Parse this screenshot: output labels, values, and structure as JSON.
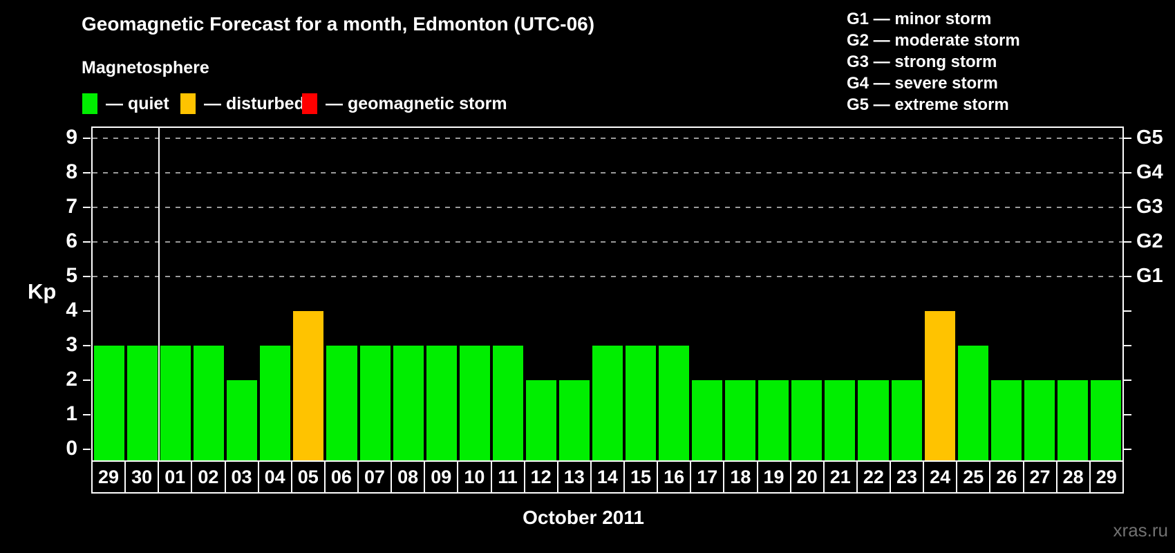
{
  "title": "Geomagnetic Forecast for a month, Edmonton (UTC-06)",
  "subtitle": "Magnetosphere",
  "legend": {
    "items": [
      {
        "key": "quiet",
        "label": "— quiet",
        "color": "#00EE00"
      },
      {
        "key": "disturbed",
        "label": "— disturbed",
        "color": "#FFC300"
      },
      {
        "key": "storm",
        "label": "— geomagnetic storm",
        "color": "#FF0000"
      }
    ]
  },
  "storm_scale_legend": [
    "G1 — minor storm",
    "G2 — moderate storm",
    "G3 — strong storm",
    "G4 — severe storm",
    "G5 — extreme storm"
  ],
  "watermark": "xras.ru",
  "colors": {
    "background": "#000000",
    "axis": "#FFFFFF",
    "gridline": "#9B9B9B",
    "watermark_text": "#717171"
  },
  "chart_data": {
    "type": "bar",
    "title": "Geomagnetic Forecast for a month, Edmonton (UTC-06)",
    "xlabel": "October 2011",
    "ylabel": "Kp",
    "ylim": [
      0,
      9
    ],
    "ytick_step": 1,
    "grid": "dashed horizontal at Kp 5-9 only",
    "legend_position": "top",
    "categories": [
      "29",
      "30",
      "01",
      "02",
      "03",
      "04",
      "05",
      "06",
      "07",
      "08",
      "09",
      "10",
      "11",
      "12",
      "13",
      "14",
      "15",
      "16",
      "17",
      "18",
      "19",
      "20",
      "21",
      "22",
      "23",
      "24",
      "25",
      "26",
      "27",
      "28",
      "29"
    ],
    "values": [
      3,
      3,
      3,
      3,
      2,
      3,
      4,
      3,
      3,
      3,
      3,
      3,
      3,
      2,
      2,
      3,
      3,
      3,
      2,
      2,
      2,
      2,
      2,
      2,
      2,
      4,
      3,
      2,
      2,
      2,
      2
    ],
    "statuses": [
      "quiet",
      "quiet",
      "quiet",
      "quiet",
      "quiet",
      "quiet",
      "disturbed",
      "quiet",
      "quiet",
      "quiet",
      "quiet",
      "quiet",
      "quiet",
      "quiet",
      "quiet",
      "quiet",
      "quiet",
      "quiet",
      "quiet",
      "quiet",
      "quiet",
      "quiet",
      "quiet",
      "quiet",
      "quiet",
      "disturbed",
      "quiet",
      "quiet",
      "quiet",
      "quiet",
      "quiet"
    ],
    "month_boundary_after_index": 1,
    "gridlines_at": [
      5,
      6,
      7,
      8,
      9
    ],
    "right_axis": [
      {
        "kp": 5,
        "label": "G1"
      },
      {
        "kp": 6,
        "label": "G2"
      },
      {
        "kp": 7,
        "label": "G3"
      },
      {
        "kp": 8,
        "label": "G4"
      },
      {
        "kp": 9,
        "label": "G5"
      }
    ]
  }
}
